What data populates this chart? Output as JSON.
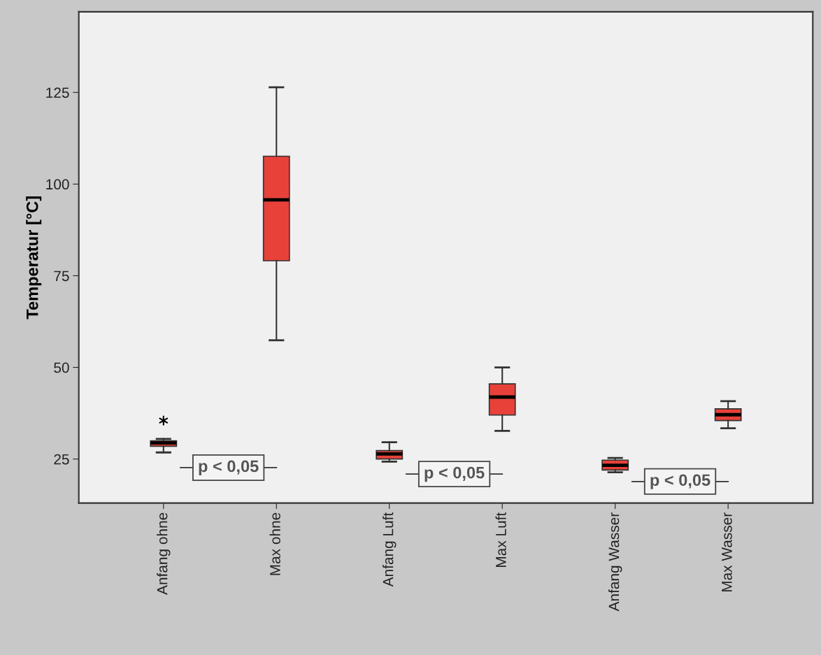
{
  "chart_data": {
    "type": "box",
    "ylabel": "Temperatur [°C]",
    "categories": [
      "Anfang ohne",
      "Max ohne",
      "Anfang Luft",
      "Max Luft",
      "Anfang Wasser",
      "Max Wasser"
    ],
    "series": [
      {
        "color": "#e8413a",
        "boxes": [
          {
            "low": 26.8,
            "q1": 28.5,
            "median": 29.4,
            "q3": 30.0,
            "high": 30.5,
            "outliers": [
              35.5
            ]
          },
          {
            "low": 57.4,
            "q1": 79.1,
            "median": 95.7,
            "q3": 107.6,
            "high": 126.4
          },
          {
            "low": 24.3,
            "q1": 25.0,
            "median": 26.4,
            "q3": 27.3,
            "high": 29.6
          },
          {
            "low": 32.7,
            "q1": 37.0,
            "median": 41.9,
            "q3": 45.5,
            "high": 50.0
          },
          {
            "low": 21.4,
            "q1": 22.0,
            "median": 23.3,
            "q3": 24.7,
            "high": 25.3
          },
          {
            "low": 33.4,
            "q1": 35.5,
            "median": 37.1,
            "q3": 38.7,
            "high": 40.8
          }
        ]
      }
    ],
    "ylim": [
      13,
      147
    ],
    "yticks": [
      25,
      50,
      75,
      100,
      125
    ],
    "grid": false,
    "annotations": [
      "p < 0,05",
      "p < 0,05",
      "p < 0,05"
    ]
  }
}
